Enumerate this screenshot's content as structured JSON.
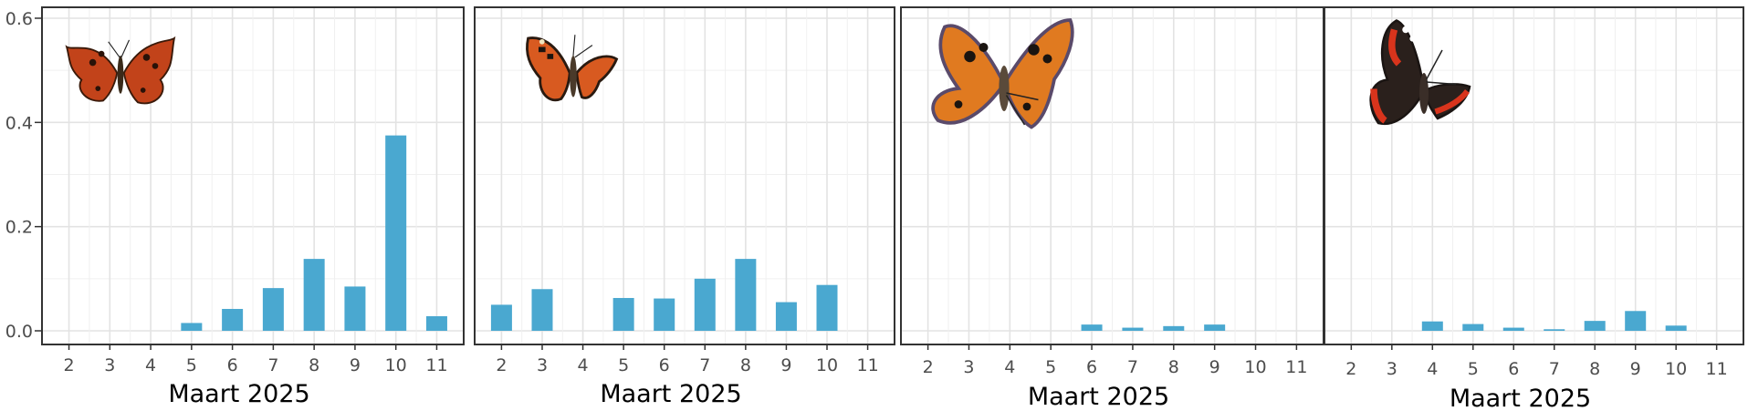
{
  "colors": {
    "bar": "#4aa8d0",
    "panel_border": "#333333",
    "grid_major": "#e3e3e3",
    "grid_minor": "#f0f0f0",
    "tick_text": "#4d4d4d"
  },
  "shared_y_tick_labels": [
    "0.0",
    "0.2",
    "0.4",
    "0.6"
  ],
  "chart_data": [
    {
      "type": "bar",
      "xlabel": "Maart 2025",
      "ylabel": "",
      "categories": [
        "2",
        "3",
        "4",
        "5",
        "6",
        "7",
        "8",
        "9",
        "10",
        "11"
      ],
      "values": [
        0,
        0,
        0,
        0.015,
        0.042,
        0.082,
        0.138,
        0.085,
        0.375,
        0.028
      ],
      "ylim": [
        0,
        0.6
      ],
      "y_ticks": [
        0,
        0.2,
        0.4,
        0.6
      ],
      "grid": true,
      "icon": "comma-butterfly-icon"
    },
    {
      "type": "bar",
      "xlabel": "Maart 2025",
      "ylabel": "",
      "categories": [
        "2",
        "3",
        "4",
        "5",
        "6",
        "7",
        "8",
        "9",
        "10",
        "11"
      ],
      "values": [
        0.05,
        0.08,
        0,
        0.063,
        0.062,
        0.1,
        0.138,
        0.055,
        0.088,
        0
      ],
      "ylim": [
        0,
        0.6
      ],
      "y_ticks": [
        0,
        0.2,
        0.4,
        0.6
      ],
      "grid": true,
      "icon": "small-tortoiseshell-butterfly-icon"
    },
    {
      "type": "bar",
      "xlabel": "Maart 2025",
      "ylabel": "",
      "categories": [
        "2",
        "3",
        "4",
        "5",
        "6",
        "7",
        "8",
        "9",
        "10",
        "11"
      ],
      "values": [
        0,
        0,
        0,
        0,
        0.012,
        0.006,
        0.009,
        0.012,
        0,
        0
      ],
      "ylim": [
        0,
        0.6
      ],
      "y_ticks": [
        0,
        0.2,
        0.4,
        0.6
      ],
      "grid": true,
      "icon": "large-tortoiseshell-butterfly-icon"
    },
    {
      "type": "bar",
      "xlabel": "Maart 2025",
      "ylabel": "",
      "categories": [
        "2",
        "3",
        "4",
        "5",
        "6",
        "7",
        "8",
        "9",
        "10",
        "11"
      ],
      "values": [
        0,
        0,
        0.018,
        0.013,
        0.006,
        0.003,
        0.019,
        0.038,
        0.01,
        0
      ],
      "ylim": [
        0,
        0.6
      ],
      "y_ticks": [
        0,
        0.2,
        0.4,
        0.6
      ],
      "grid": true,
      "icon": "red-admiral-butterfly-icon"
    }
  ]
}
